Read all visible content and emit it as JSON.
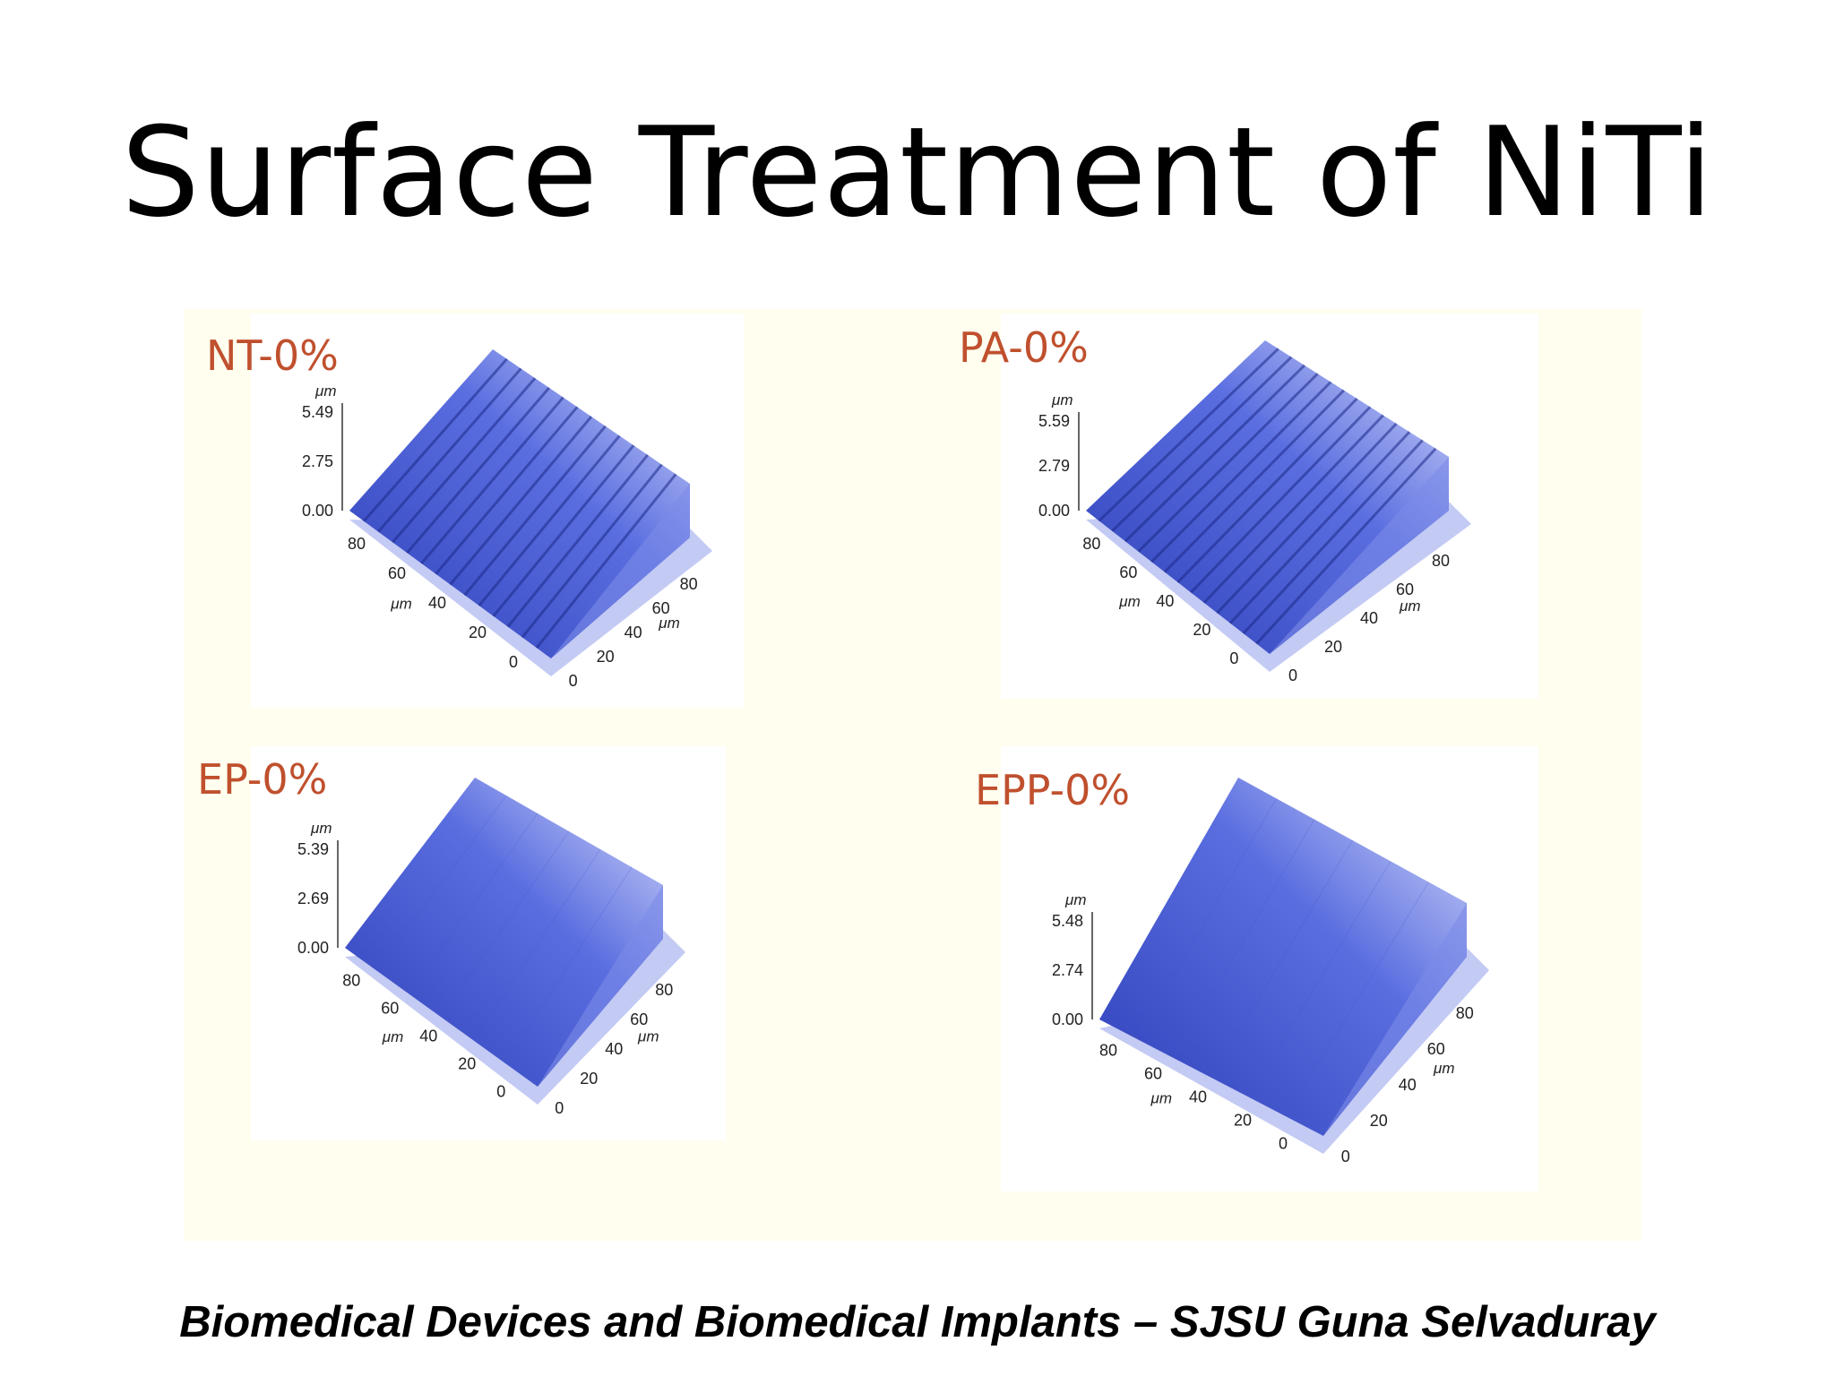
{
  "slide": {
    "title": "Surface Treatment of NiTi",
    "footer": "Biomedical Devices and Biomedical Implants – SJSU Guna Selvaduray"
  },
  "colors": {
    "label": "#c0502e",
    "surface": "#5a6ee0",
    "base": "#aab4f0",
    "panel": "#fffeef"
  },
  "plots": [
    {
      "label": "NT-0%",
      "z_unit": "μm",
      "z_ticks": [
        "5.49",
        "2.75",
        "0.00"
      ],
      "y_ticks": [
        "80",
        "60",
        "40",
        "20",
        "0"
      ],
      "y_unit": "μm",
      "x_ticks": [
        "0",
        "20",
        "40",
        "60",
        "80"
      ],
      "x_unit": "μm",
      "texture": "ridged"
    },
    {
      "label": "PA-0%",
      "z_unit": "μm",
      "z_ticks": [
        "5.59",
        "2.79",
        "0.00"
      ],
      "y_ticks": [
        "80",
        "60",
        "40",
        "20",
        "0"
      ],
      "y_unit": "μm",
      "x_ticks": [
        "0",
        "20",
        "40",
        "60",
        "80"
      ],
      "x_unit": "μm",
      "texture": "ridged"
    },
    {
      "label": "EP-0%",
      "z_unit": "μm",
      "z_ticks": [
        "5.39",
        "2.69",
        "0.00"
      ],
      "y_ticks": [
        "80",
        "60",
        "40",
        "20",
        "0"
      ],
      "y_unit": "μm",
      "x_ticks": [
        "0",
        "20",
        "40",
        "60",
        "80"
      ],
      "x_unit": "μm",
      "texture": "smooth"
    },
    {
      "label": "EPP-0%",
      "z_unit": "μm",
      "z_ticks": [
        "5.48",
        "2.74",
        "0.00"
      ],
      "y_ticks": [
        "80",
        "60",
        "40",
        "20",
        "0"
      ],
      "y_unit": "μm",
      "x_ticks": [
        "0",
        "20",
        "40",
        "60",
        "80"
      ],
      "x_unit": "μm",
      "texture": "smooth"
    }
  ]
}
